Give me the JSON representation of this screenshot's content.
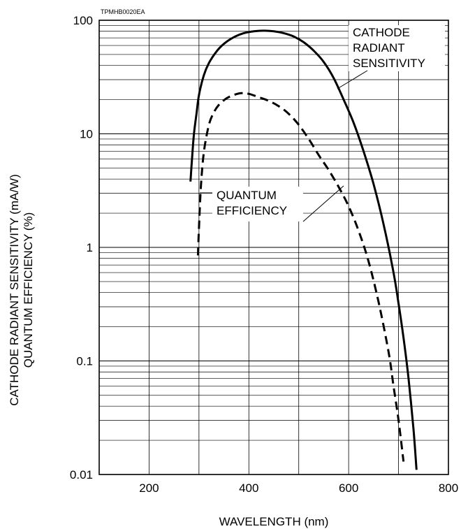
{
  "figure_code": "TPMHB0020EA",
  "chart_data": {
    "type": "line",
    "title": "",
    "xlabel": "WAVELENGTH (nm)",
    "ylabel_lines": [
      "CATHODE RADIANT SENSITIVITY (mA/W)",
      "QUANTUM EFFICIENCY (%)"
    ],
    "xlim": [
      100,
      800
    ],
    "ylim": [
      0.01,
      100
    ],
    "yscale": "log",
    "x_ticks": [
      200,
      400,
      600,
      800
    ],
    "x_tick_labels": [
      "200",
      "400",
      "600",
      "800"
    ],
    "y_ticks": [
      0.01,
      0.1,
      1,
      10,
      100
    ],
    "y_tick_labels": [
      "0.01",
      "0.1",
      "1",
      "10",
      "100"
    ],
    "grid": true,
    "series": [
      {
        "name": "CATHODE RADIANT SENSITIVITY",
        "style": "solid",
        "x": [
          283,
          286,
          290,
          295,
          300,
          310,
          320,
          335,
          350,
          370,
          390,
          410,
          430,
          450,
          470,
          490,
          510,
          530,
          550,
          570,
          590,
          610,
          630,
          650,
          670,
          690,
          700,
          710,
          720,
          730,
          736
        ],
        "y": [
          3.8,
          6,
          10,
          15,
          22,
          33,
          42,
          53,
          62,
          71,
          77,
          80,
          81,
          80,
          77,
          72,
          64,
          54,
          43,
          31,
          20,
          12.5,
          7,
          3.6,
          1.6,
          0.6,
          0.32,
          0.16,
          0.07,
          0.025,
          0.011
        ]
      },
      {
        "name": "QUANTUM EFFICIENCY",
        "style": "dashed",
        "x": [
          298,
          300,
          304,
          310,
          320,
          330,
          340,
          355,
          370,
          385,
          400,
          420,
          440,
          460,
          480,
          500,
          520,
          540,
          560,
          580,
          600,
          620,
          640,
          660,
          680,
          690,
          700,
          710
        ],
        "y": [
          0.85,
          1.5,
          3.5,
          7,
          12,
          15.5,
          18,
          20.5,
          22,
          22.8,
          22.5,
          21,
          19.5,
          17.5,
          15,
          12,
          9,
          6.5,
          4.8,
          3.4,
          2.3,
          1.4,
          0.75,
          0.33,
          0.12,
          0.06,
          0.03,
          0.013
        ]
      }
    ],
    "annotations": [
      {
        "lines": [
          "CATHODE",
          "RADIANT",
          "SENSITIVITY"
        ]
      },
      {
        "lines": [
          "QUANTUM",
          "EFFICIENCY"
        ]
      }
    ]
  }
}
